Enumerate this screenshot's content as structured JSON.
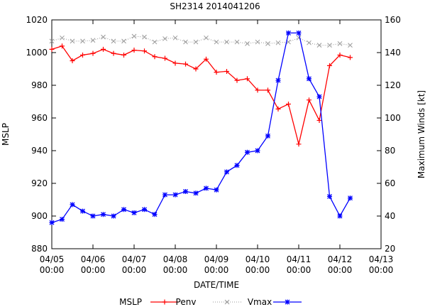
{
  "chart_data": {
    "type": "line",
    "title": "SH2314 2014041206",
    "xlabel": "DATE/TIME",
    "ylabel_left": "MSLP",
    "ylabel_right": "Maximum Winds [kt]",
    "y_left_lim": [
      880,
      1020
    ],
    "y_left_ticks": [
      "880",
      "900",
      "920",
      "940",
      "960",
      "980",
      "1000",
      "1020"
    ],
    "y_right_lim": [
      20,
      160
    ],
    "y_right_ticks": [
      "20",
      "40",
      "60",
      "80",
      "100",
      "120",
      "140",
      "160"
    ],
    "x_unit": "days since 04/05 00:00",
    "x_lim": [
      0,
      8
    ],
    "x_ticks": [
      {
        "date": "04/05",
        "time": "00:00"
      },
      {
        "date": "04/06",
        "time": "00:00"
      },
      {
        "date": "04/07",
        "time": "00:00"
      },
      {
        "date": "04/08",
        "time": "00:00"
      },
      {
        "date": "04/09",
        "time": "00:00"
      },
      {
        "date": "04/10",
        "time": "00:00"
      },
      {
        "date": "04/11",
        "time": "00:00"
      },
      {
        "date": "04/12",
        "time": "00:00"
      },
      {
        "date": "04/13",
        "time": "00:00"
      }
    ],
    "x": [
      0,
      0.25,
      0.5,
      0.75,
      1,
      1.25,
      1.5,
      1.75,
      2,
      2.25,
      2.5,
      2.75,
      3,
      3.25,
      3.5,
      3.75,
      4,
      4.25,
      4.5,
      4.75,
      5,
      5.25,
      5.5,
      5.75,
      6,
      6.25,
      6.5,
      6.75,
      7,
      7.25
    ],
    "legend_title": "MSLP",
    "series": [
      {
        "name": "Penv",
        "axis": "left",
        "color": "#ff0000",
        "style": "solid",
        "marker": "plus",
        "values": [
          1002,
          1004,
          995,
          998.5,
          999.5,
          1002,
          999.5,
          998.5,
          1001.5,
          1001,
          997.5,
          996.5,
          993.5,
          993,
          990,
          996,
          988,
          988.5,
          983,
          984,
          977,
          977,
          965.5,
          968.5,
          944,
          971,
          958.5,
          992,
          998.5,
          997
        ]
      },
      {
        "name": "",
        "axis": "left",
        "color": "#999999",
        "style": "dotted",
        "marker": "x",
        "values": [
          1007,
          1009,
          1007,
          1007,
          1007.5,
          1009.5,
          1007,
          1007,
          1010,
          1009.5,
          1006.5,
          1008.5,
          1009,
          1006.5,
          1006.5,
          1009,
          1006.5,
          1006.5,
          1006.5,
          1005.5,
          1006.5,
          1005.5,
          1006,
          1006.5,
          1009,
          1006,
          1004.5,
          1004.5,
          1005.5,
          1004.5
        ]
      },
      {
        "name": "Vmax",
        "axis": "right",
        "color": "#0000ff",
        "style": "solid",
        "marker": "star",
        "values": [
          36,
          38,
          47,
          43,
          40,
          41,
          40,
          44,
          42,
          44,
          41,
          53,
          53,
          55,
          54,
          57,
          56,
          67,
          71,
          79,
          80,
          89,
          123,
          152,
          152,
          124,
          113,
          52,
          40,
          51
        ]
      }
    ],
    "legend_position": "bottom"
  }
}
